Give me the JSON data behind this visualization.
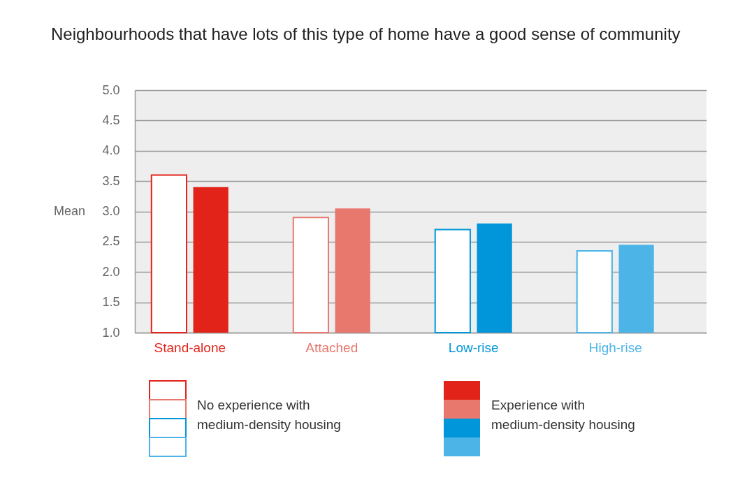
{
  "chart_data": {
    "type": "bar",
    "title": "Neighbourhoods that have lots of this type of home have a good sense of community",
    "ylabel": "Mean",
    "categories": [
      "Stand-alone",
      "Attached",
      "Low-rise",
      "High-rise"
    ],
    "series": [
      {
        "name": "No experience with medium-density housing",
        "color": "#ffffff",
        "colors": [
          "#e2231a",
          "#e8776e",
          "#0096d9",
          "#4cb4e7"
        ],
        "values": [
          3.6,
          2.9,
          2.7,
          2.35
        ]
      },
      {
        "name": "Experience with medium-density housing",
        "colors": [
          "#e2231a",
          "#e8776e",
          "#0096d9",
          "#4cb4e7"
        ],
        "values": [
          3.4,
          3.05,
          2.8,
          2.45
        ]
      }
    ],
    "ylim": [
      1,
      5
    ],
    "yticks": [
      {
        "value": 1,
        "label": "1.0"
      },
      1.5,
      {
        "value": 2,
        "label": "2.0"
      },
      2.5,
      {
        "value": 3,
        "label": "3.0"
      },
      3.5,
      {
        "value": 4,
        "label": "4.0"
      },
      4.5,
      {
        "value": 5,
        "label": "5.0"
      }
    ],
    "grid": "y",
    "legend": "bottom"
  }
}
